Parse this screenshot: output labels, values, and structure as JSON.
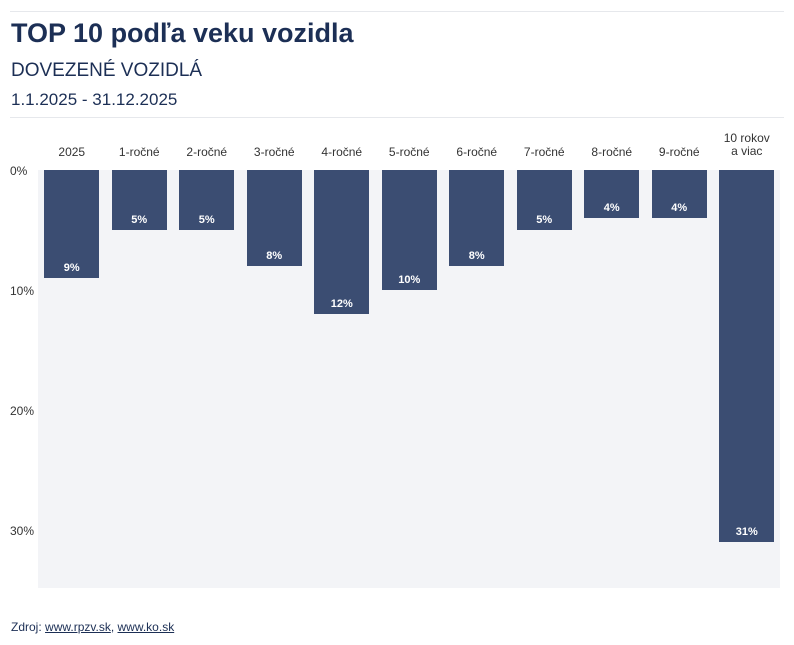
{
  "header": {
    "title": "TOP 10 podľa veku vozidla",
    "subtitle": "DOVEZENÉ VOZIDLÁ",
    "period": "1.1.2025 - 31.12.2025"
  },
  "chart_data": {
    "type": "bar",
    "orientation": "vertical, bars hanging from top",
    "categories": [
      "2025",
      "1-ročné",
      "2-ročné",
      "3-ročné",
      "4-ročné",
      "5-ročné",
      "6-ročné",
      "7-ročné",
      "8-ročné",
      "9-ročné",
      "10 rokov a viac"
    ],
    "values": [
      9,
      5,
      5,
      8,
      12,
      10,
      8,
      5,
      4,
      4,
      31
    ],
    "data_labels": [
      "9%",
      "5%",
      "5%",
      "8%",
      "12%",
      "10%",
      "8%",
      "5%",
      "4%",
      "4%",
      "31%"
    ],
    "y_ticks": [
      "0%",
      "10%",
      "20%",
      "30%"
    ],
    "ylim": [
      0,
      35
    ],
    "bar_color": "#3b4d72",
    "background": "#f3f4f7",
    "grid": false
  },
  "footer": {
    "source_label": "Zdroj:",
    "links": [
      "www.rpzv.sk",
      "www.ko.sk"
    ],
    "separator": ","
  }
}
